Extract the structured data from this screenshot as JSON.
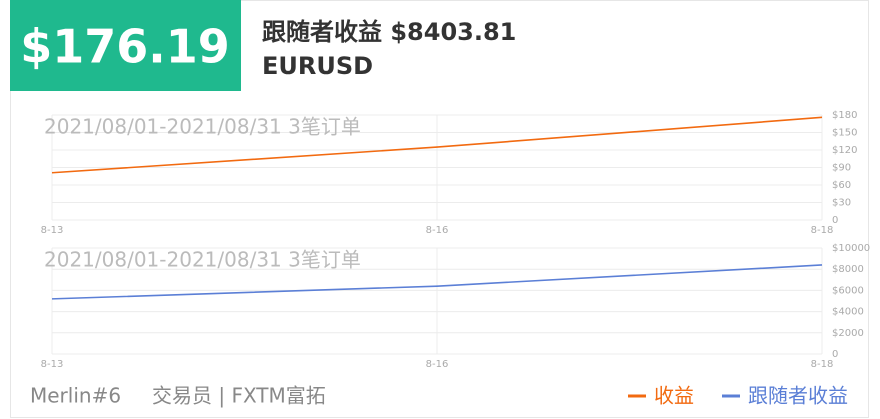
{
  "header": {
    "amount": "$176.19",
    "title": "跟随者收益 $8403.81",
    "symbol": "EURUSD"
  },
  "chart_data": [
    {
      "type": "line",
      "subtitle": "2021/08/01-2021/08/31 3笔订单",
      "categories": [
        "8-13",
        "8-16",
        "8-18"
      ],
      "series": [
        {
          "name": "收益",
          "color": "#f26a10",
          "values": [
            81,
            125,
            176
          ]
        }
      ],
      "ylim": [
        0,
        180
      ],
      "yticks": [
        0,
        {
          "value": 30,
          "label": "$30"
        },
        {
          "value": 60,
          "label": "$60"
        },
        {
          "value": 90,
          "label": "$90"
        },
        {
          "value": 120,
          "label": "$120"
        },
        {
          "value": 150,
          "label": "$150"
        },
        {
          "value": 180,
          "label": "$180"
        }
      ],
      "grid": true
    },
    {
      "type": "line",
      "subtitle": "2021/08/01-2021/08/31 3笔订单",
      "categories": [
        "8-13",
        "8-16",
        "8-18"
      ],
      "series": [
        {
          "name": "跟随者收益",
          "color": "#5b7fd6",
          "values": [
            5200,
            6400,
            8400
          ]
        }
      ],
      "ylim": [
        0,
        10000
      ],
      "yticks": [
        0,
        {
          "value": 2000,
          "label": "$2000"
        },
        {
          "value": 4000,
          "label": "$4000"
        },
        {
          "value": 6000,
          "label": "$6000"
        },
        {
          "value": 8000,
          "label": "$8000"
        },
        {
          "value": 10000,
          "label": "$10000"
        }
      ],
      "grid": true
    }
  ],
  "footer": {
    "trader": "Merlin#6",
    "broker": "交易员 | FXTM富拓"
  }
}
